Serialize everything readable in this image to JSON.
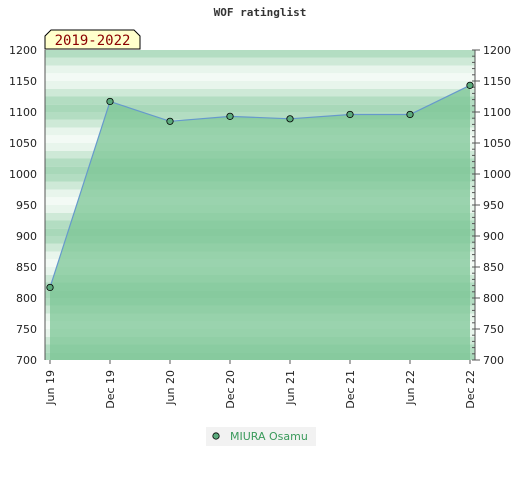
{
  "chart_data": {
    "type": "area",
    "title": "WOF ratinglist",
    "period_label": "2019-2022",
    "categories": [
      "Jun 19",
      "Dec 19",
      "Jun 20",
      "Dec 20",
      "Jun 21",
      "Dec 21",
      "Jun 22",
      "Dec 22"
    ],
    "series": [
      {
        "name": "MIURA Osamu",
        "values": [
          817,
          1117,
          1085,
          1093,
          1089,
          1096,
          1096,
          1143
        ]
      }
    ],
    "ylim": [
      700,
      1200
    ],
    "yticks": [
      700,
      750,
      800,
      850,
      900,
      950,
      1000,
      1050,
      1100,
      1150,
      1200
    ],
    "xlabel": "",
    "ylabel": "",
    "grid": true,
    "legend_position": "bottom-center",
    "colors": {
      "line": "#6699cc",
      "area": "#7cc596",
      "marker": "#5cab7d",
      "band_dark": "#a8d8b9",
      "band_light": "#f3faf5",
      "legend_text": "#3a9a5b",
      "badge_bg": "#ffffcc"
    }
  }
}
